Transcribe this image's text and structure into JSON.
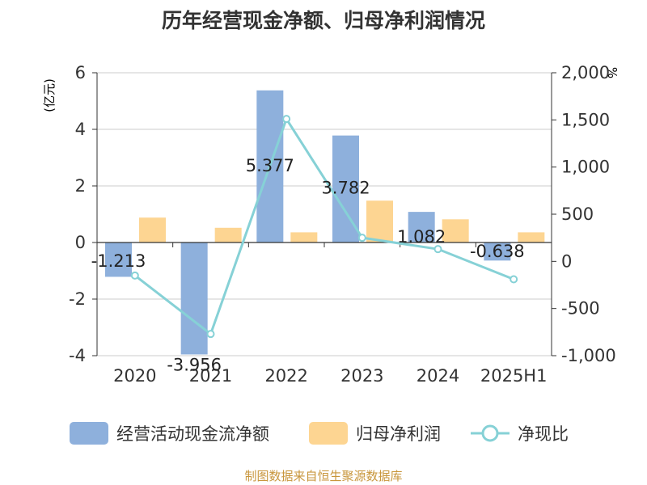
{
  "title": "历年经营现金净额、归母净利润情况",
  "footer": "制图数据来自恒生聚源数据库",
  "colors": {
    "bar1": "#8eb0dc",
    "bar2": "#fdd592",
    "line": "#86d1d6",
    "axis": "#333333",
    "grid": "#cccccc",
    "unit": "#e02020"
  },
  "legend": {
    "bar1": "经营活动现金流净额",
    "bar2": "归母净利润",
    "line": "净现比"
  },
  "chart_data": {
    "type": "bar+line",
    "title": "历年经营现金净额、归母净利润情况",
    "categories": [
      "2020",
      "2021",
      "2022",
      "2023",
      "2024",
      "2025H1"
    ],
    "y_left": {
      "unit": "(亿元)",
      "ticks": [
        "6",
        "4",
        "2",
        "0",
        "-2",
        "-4"
      ],
      "range": [
        -4,
        6
      ]
    },
    "y_right": {
      "unit": "%",
      "ticks": [
        "2,000",
        "1,500",
        "1,000",
        "500",
        "0",
        "-500",
        "-1,000"
      ],
      "range": [
        -1000,
        2000
      ]
    },
    "series": [
      {
        "name": "经营活动现金流净额",
        "type": "bar",
        "axis": "left",
        "values": [
          -1.213,
          -3.956,
          5.377,
          3.782,
          1.082,
          -0.638
        ],
        "labels": [
          "-1.213",
          "-3.956",
          "5.377",
          "3.782",
          "1.082",
          "-0.638"
        ]
      },
      {
        "name": "归母净利润",
        "type": "bar",
        "axis": "left",
        "values": [
          0.88,
          0.52,
          0.36,
          1.48,
          0.82,
          0.36
        ]
      },
      {
        "name": "净现比",
        "type": "line",
        "axis": "right",
        "values": [
          -150,
          -770,
          1510,
          250,
          130,
          -190
        ]
      }
    ]
  }
}
